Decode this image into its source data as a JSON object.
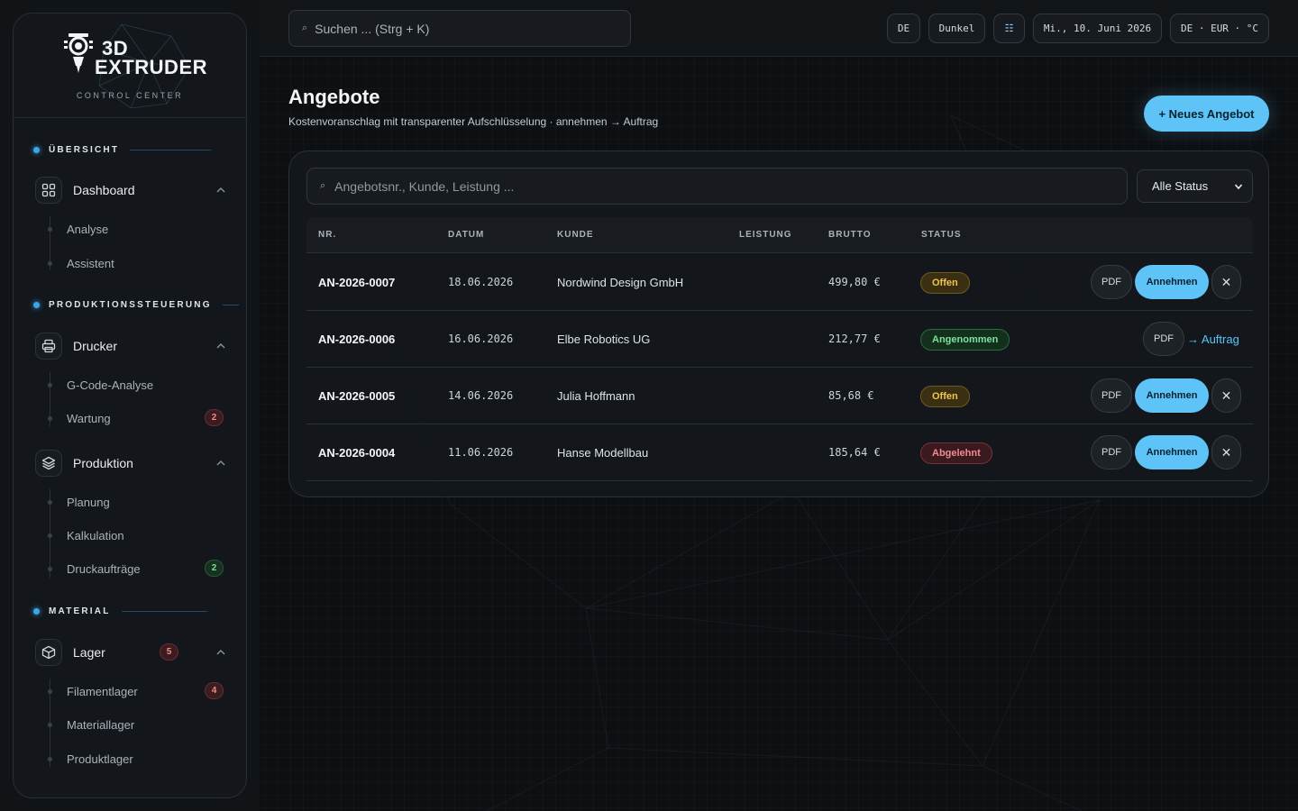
{
  "brand": {
    "line1": "3D",
    "line2": "EXTRUDER",
    "subtitle": "CONTROL CENTER"
  },
  "sidebar": {
    "sections": [
      {
        "title": "ÜBERSICHT"
      },
      {
        "title": "PRODUKTIONSSTEUERUNG"
      },
      {
        "title": "MATERIAL"
      }
    ],
    "groups": [
      {
        "label": "Dashboard",
        "icon": "grid-icon",
        "children": [
          {
            "label": "Analyse"
          },
          {
            "label": "Assistent"
          }
        ]
      },
      {
        "label": "Drucker",
        "icon": "printer-icon",
        "children": [
          {
            "label": "G-Code-Analyse"
          },
          {
            "label": "Wartung",
            "count": "2",
            "count_color": "red"
          }
        ]
      },
      {
        "label": "Produktion",
        "icon": "layers-icon",
        "children": [
          {
            "label": "Planung"
          },
          {
            "label": "Kalkulation"
          },
          {
            "label": "Druckaufträge",
            "count": "2",
            "count_color": "green"
          }
        ]
      },
      {
        "label": "Lager",
        "icon": "box-icon",
        "count": "5",
        "count_color": "red",
        "children": [
          {
            "label": "Filamentlager",
            "count": "4",
            "count_color": "red"
          },
          {
            "label": "Materiallager"
          },
          {
            "label": "Produktlager"
          }
        ]
      }
    ]
  },
  "topbar": {
    "search_icon": "⌕",
    "search_placeholder": "Suchen ... (Strg + K)",
    "lang": "DE",
    "theme": "Dunkel",
    "settings_icon": "☷",
    "date": "Mi., 10. Juni 2026",
    "locale": "DE · EUR · °C"
  },
  "page": {
    "title": "Angebote",
    "subtitle": "Kostenvoranschlag mit transparenter Aufschlüsselung · annehmen → Auftrag",
    "new_button": "+ Neues Angebot"
  },
  "filter": {
    "search_icon": "⌕",
    "placeholder": "Angebotsnr., Kunde, Leistung ...",
    "status_select": "Alle Status"
  },
  "table": {
    "headers": [
      "NR.",
      "DATUM",
      "KUNDE",
      "LEISTUNG",
      "BRUTTO",
      "STATUS"
    ],
    "rows": [
      {
        "nr": "AN-2026-0007",
        "datum": "18.06.2026",
        "kunde": "Nordwind Design GmbH",
        "leistung": "",
        "brutto": "499,80 €",
        "status": "Offen",
        "status_kind": "open",
        "pdf": "PDF",
        "accept": "Annehmen",
        "reject": "✕"
      },
      {
        "nr": "AN-2026-0006",
        "datum": "16.06.2026",
        "kunde": "Elbe Robotics UG",
        "leistung": "",
        "brutto": "212,77 €",
        "status": "Angenommen",
        "status_kind": "accepted",
        "pdf": "PDF",
        "link": "→ Auftrag"
      },
      {
        "nr": "AN-2026-0005",
        "datum": "14.06.2026",
        "kunde": "Julia Hoffmann",
        "leistung": "",
        "brutto": "85,68 €",
        "status": "Offen",
        "status_kind": "open",
        "pdf": "PDF",
        "accept": "Annehmen",
        "reject": "✕"
      },
      {
        "nr": "AN-2026-0004",
        "datum": "11.06.2026",
        "kunde": "Hanse Modellbau",
        "leistung": "",
        "brutto": "185,64 €",
        "status": "Abgelehnt",
        "status_kind": "rejected",
        "pdf": "PDF",
        "accept": "Annehmen",
        "reject": "✕"
      }
    ]
  },
  "colors": {
    "accent": "#5ec4f7",
    "background": "#0d1013",
    "open": "#f2c44c",
    "accepted": "#7ee09b",
    "rejected": "#f18a94"
  }
}
